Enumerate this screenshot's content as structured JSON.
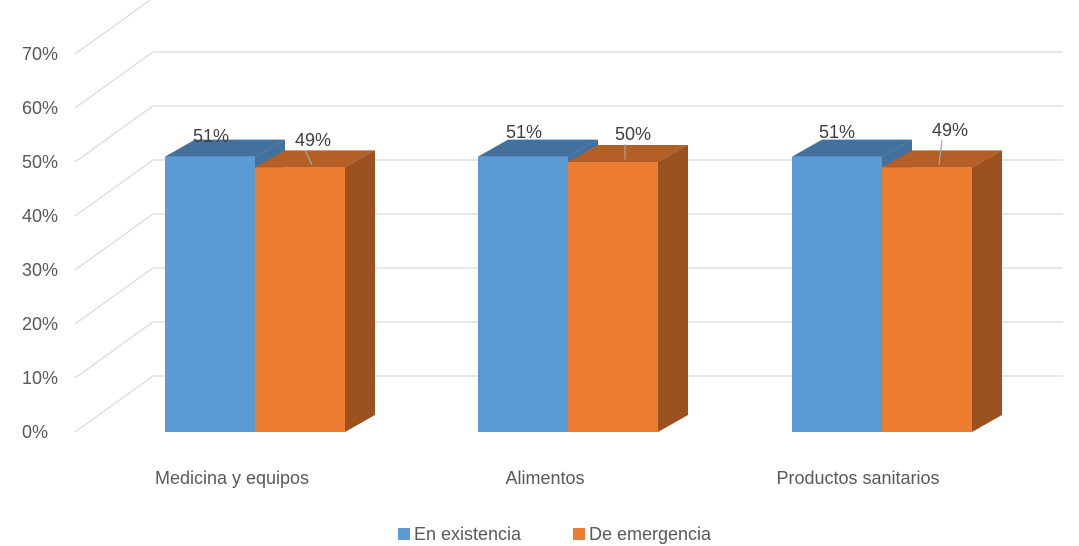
{
  "chart_data": {
    "type": "bar",
    "categories": [
      "Medicina y equipos",
      "Alimentos",
      "Productos sanitarios"
    ],
    "series": [
      {
        "name": "En existencia",
        "values": [
          51,
          51,
          51
        ],
        "labels": [
          "51%",
          "51%",
          "51%"
        ]
      },
      {
        "name": "De emergencia",
        "values": [
          49,
          50,
          49
        ],
        "labels": [
          "49%",
          "50%",
          "49%"
        ]
      }
    ],
    "y_ticks": [
      "0%",
      "10%",
      "20%",
      "30%",
      "40%",
      "50%",
      "60%",
      "70%"
    ],
    "ylim": [
      0,
      70
    ],
    "legend_position": "bottom",
    "grid": true,
    "colors": {
      "En existencia": {
        "front": "#5b9bd5",
        "top": "#41719c",
        "side": "#41719c"
      },
      "De emergencia": {
        "front": "#ed7d31",
        "top": "#b35f25",
        "side": "#9c5121"
      },
      "grid": "#d9d9d9"
    }
  }
}
